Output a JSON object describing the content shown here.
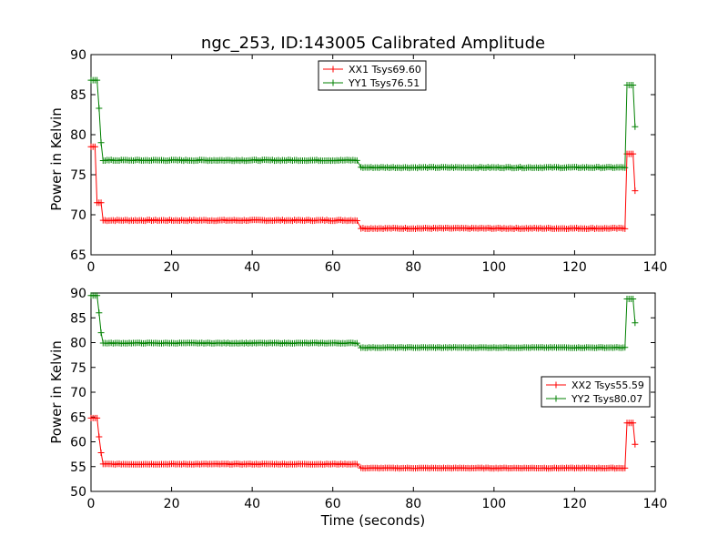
{
  "chart_data": [
    {
      "type": "line",
      "title": "ngc_253, ID:143005 Calibrated Amplitude",
      "xlabel": "",
      "ylabel": "Power in Kelvin",
      "xlim": [
        0,
        140
      ],
      "ylim": [
        65,
        90
      ],
      "xticks": [
        0,
        20,
        40,
        60,
        80,
        100,
        120,
        140
      ],
      "yticks": [
        65,
        70,
        75,
        80,
        85,
        90
      ],
      "legend_position": "top-center",
      "series": [
        {
          "name": "XX1 Tsys69.60",
          "color": "#ff0000",
          "segments": [
            {
              "x0": 0,
              "x1": 1,
              "level": 78.5
            },
            {
              "x0": 1.5,
              "x1": 2.5,
              "level": 71.5
            },
            {
              "x0": 3,
              "x1": 66,
              "level": 69.3
            },
            {
              "x0": 67,
              "x1": 132.5,
              "level": 68.3
            },
            {
              "x0": 133,
              "x1": 134.5,
              "level": 77.6
            },
            {
              "x0": 135,
              "x1": 135,
              "level": 73.0
            }
          ]
        },
        {
          "name": "YY1 Tsys76.51",
          "color": "#008000",
          "segments": [
            {
              "x0": 0,
              "x1": 1.5,
              "level": 86.8
            },
            {
              "x0": 2,
              "x1": 2,
              "level": 83.3
            },
            {
              "x0": 2.5,
              "x1": 2.5,
              "level": 79.0
            },
            {
              "x0": 3,
              "x1": 66,
              "level": 76.8
            },
            {
              "x0": 67,
              "x1": 132.5,
              "level": 75.9
            },
            {
              "x0": 133,
              "x1": 134.5,
              "level": 86.2
            },
            {
              "x0": 135,
              "x1": 135,
              "level": 81.0
            }
          ]
        }
      ]
    },
    {
      "type": "line",
      "title": "",
      "xlabel": "Time (seconds)",
      "ylabel": "Power in Kelvin",
      "xlim": [
        0,
        140
      ],
      "ylim": [
        50,
        90
      ],
      "xticks": [
        0,
        20,
        40,
        60,
        80,
        100,
        120,
        140
      ],
      "yticks": [
        50,
        55,
        60,
        65,
        70,
        75,
        80,
        85,
        90
      ],
      "legend_position": "center-right",
      "series": [
        {
          "name": "XX2 Tsys55.59",
          "color": "#ff0000",
          "segments": [
            {
              "x0": 0,
              "x1": 1.5,
              "level": 64.8
            },
            {
              "x0": 2,
              "x1": 2,
              "level": 61.0
            },
            {
              "x0": 2.5,
              "x1": 2.5,
              "level": 57.8
            },
            {
              "x0": 3,
              "x1": 66,
              "level": 55.5
            },
            {
              "x0": 67,
              "x1": 132.5,
              "level": 54.7
            },
            {
              "x0": 133,
              "x1": 134.5,
              "level": 63.8
            },
            {
              "x0": 135,
              "x1": 135,
              "level": 59.5
            }
          ]
        },
        {
          "name": "YY2 Tsys80.07",
          "color": "#008000",
          "segments": [
            {
              "x0": 0,
              "x1": 1.5,
              "level": 89.5
            },
            {
              "x0": 2,
              "x1": 2,
              "level": 86.0
            },
            {
              "x0": 2.5,
              "x1": 2.5,
              "level": 82.0
            },
            {
              "x0": 3,
              "x1": 66,
              "level": 79.9
            },
            {
              "x0": 67,
              "x1": 132.5,
              "level": 79.0
            },
            {
              "x0": 133,
              "x1": 134.5,
              "level": 88.8
            },
            {
              "x0": 135,
              "x1": 135,
              "level": 84.0
            }
          ]
        }
      ]
    }
  ]
}
